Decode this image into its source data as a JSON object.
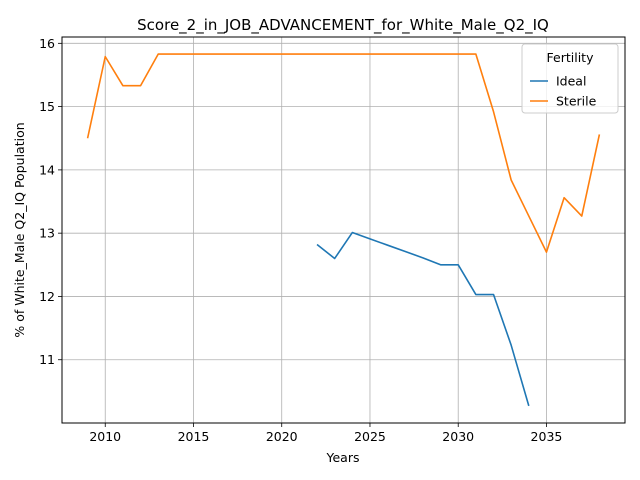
{
  "chart_data": {
    "type": "line",
    "title": "Score_2_in_JOB_ADVANCEMENT_for_White_Male_Q2_IQ",
    "xlabel": "Years",
    "ylabel": "% of White_Male Q2_IQ Population",
    "xlim": [
      2007.55,
      2039.45
    ],
    "ylim": [
      10.0,
      16.1
    ],
    "xticks": [
      2010,
      2015,
      2020,
      2025,
      2030,
      2035
    ],
    "yticks": [
      11,
      12,
      13,
      14,
      15,
      16
    ],
    "grid": true,
    "legend": {
      "title": "Fertility",
      "placement": "top-right"
    },
    "series": [
      {
        "name": "Ideal",
        "color": "#1f77b4",
        "x": [
          2022,
          2023,
          2024,
          2025,
          2026,
          2027,
          2028,
          2029,
          2030,
          2031,
          2032,
          2033,
          2034
        ],
        "y": [
          12.82,
          12.6,
          13.01,
          12.91,
          12.81,
          12.71,
          12.61,
          12.5,
          12.5,
          12.03,
          12.03,
          11.23,
          10.27
        ]
      },
      {
        "name": "Sterile",
        "color": "#ff7f0e",
        "x": [
          2009,
          2010,
          2011,
          2012,
          2013,
          2014,
          2015,
          2016,
          2017,
          2018,
          2019,
          2020,
          2021,
          2022,
          2023,
          2024,
          2025,
          2026,
          2027,
          2028,
          2029,
          2030,
          2031,
          2032,
          2033,
          2034,
          2035,
          2036,
          2037,
          2038
        ],
        "y": [
          14.5,
          15.79,
          15.33,
          15.33,
          15.83,
          15.83,
          15.83,
          15.83,
          15.83,
          15.83,
          15.83,
          15.83,
          15.83,
          15.83,
          15.83,
          15.83,
          15.83,
          15.83,
          15.83,
          15.83,
          15.83,
          15.83,
          15.83,
          14.92,
          13.84,
          13.27,
          12.7,
          13.56,
          13.27,
          14.56
        ]
      }
    ]
  }
}
